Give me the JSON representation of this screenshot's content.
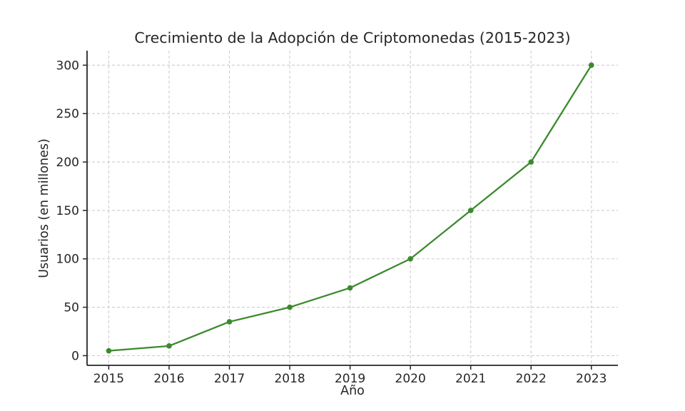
{
  "chart_data": {
    "type": "line",
    "title": "Crecimiento de la Adopción de Criptomonedas (2015-2023)",
    "xlabel": "Año",
    "ylabel": "Usuarios (en millones)",
    "categories": [
      2015,
      2016,
      2017,
      2018,
      2019,
      2020,
      2021,
      2022,
      2023
    ],
    "values": [
      5,
      10,
      35,
      50,
      70,
      100,
      150,
      200,
      300
    ],
    "yticks": [
      0,
      50,
      100,
      150,
      200,
      250,
      300
    ],
    "xlim": [
      2014.64,
      2023.44
    ],
    "ylim": [
      -10,
      315
    ],
    "grid": true,
    "grid_style": "dashed",
    "legend": false,
    "marker": "circle",
    "colors": {
      "line": "#3A8A2C",
      "marker": "#3A8A2C",
      "grid": "#CDCDCD",
      "axis": "#262626",
      "text": "#262626",
      "background": "#FFFFFF"
    }
  }
}
